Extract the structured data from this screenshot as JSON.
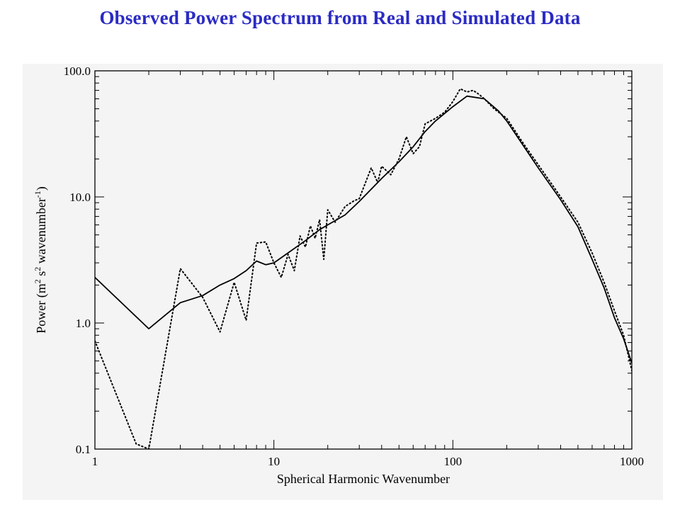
{
  "title": "Observed Power Spectrum from Real and Simulated Data",
  "chart_data": {
    "type": "line",
    "xscale": "log",
    "yscale": "log",
    "xlim": [
      1,
      1000
    ],
    "ylim": [
      0.1,
      100
    ],
    "xlabel": "Spherical Harmonic Wavenumber",
    "ylabel": {
      "prefix": "Power (m",
      "sup1": "2",
      "mid1": " s",
      "sup2": "2",
      "mid2": " wavenumber",
      "sup3": "-1",
      "suffix": ")"
    },
    "x_ticks": [
      {
        "value": 1,
        "label": "1"
      },
      {
        "value": 10,
        "label": "10"
      },
      {
        "value": 100,
        "label": "100"
      },
      {
        "value": 1000,
        "label": "1000"
      }
    ],
    "y_ticks": [
      {
        "value": 0.1,
        "label": "0.1"
      },
      {
        "value": 1,
        "label": "1.0"
      },
      {
        "value": 10,
        "label": "10.0"
      },
      {
        "value": 100,
        "label": "100.0"
      }
    ],
    "series": [
      {
        "style": "solid",
        "color": "#000000",
        "x": [
          1,
          2,
          3,
          4,
          5,
          6,
          7,
          8,
          9,
          10,
          12,
          15,
          18,
          20,
          25,
          30,
          40,
          50,
          60,
          70,
          80,
          100,
          120,
          150,
          180,
          200,
          250,
          300,
          400,
          500,
          600,
          700,
          800,
          900,
          1000
        ],
        "y": [
          2.3,
          0.9,
          1.45,
          1.65,
          2.0,
          2.25,
          2.6,
          3.1,
          2.9,
          3.0,
          3.6,
          4.5,
          5.5,
          6.0,
          7.2,
          9.2,
          14,
          19,
          25,
          33,
          40,
          52,
          63,
          60,
          48,
          40,
          25,
          17,
          9.5,
          5.8,
          3.2,
          1.9,
          1.1,
          0.75,
          0.48
        ]
      },
      {
        "style": "dotted",
        "color": "#000000",
        "x": [
          1,
          1.7,
          2,
          3,
          4,
          5,
          6,
          7,
          8,
          9,
          10,
          11,
          12,
          13,
          14,
          15,
          16,
          17,
          18,
          19,
          20,
          22,
          25,
          28,
          30,
          35,
          38,
          40,
          45,
          50,
          55,
          60,
          65,
          70,
          80,
          90,
          100,
          110,
          120,
          130,
          140,
          150,
          170,
          200,
          250,
          300,
          400,
          500,
          600,
          700,
          800,
          900,
          1000
        ],
        "y": [
          0.72,
          0.11,
          0.1,
          2.7,
          1.6,
          0.85,
          2.1,
          1.05,
          4.3,
          4.4,
          3.0,
          2.3,
          3.5,
          2.6,
          4.9,
          4.0,
          5.9,
          4.7,
          6.6,
          3.2,
          7.9,
          6.3,
          8.4,
          9.3,
          9.7,
          17,
          13,
          17.5,
          15,
          20,
          30,
          22,
          25,
          38,
          42,
          47,
          57,
          72,
          68,
          70,
          65,
          60,
          50,
          42,
          26,
          18,
          10,
          6.3,
          3.6,
          2.1,
          1.25,
          0.8,
          0.42
        ]
      }
    ],
    "grid": false,
    "legend": "none"
  }
}
